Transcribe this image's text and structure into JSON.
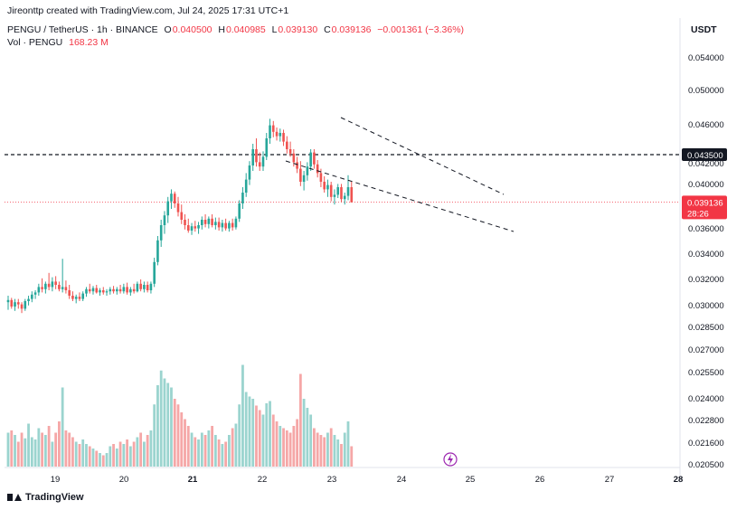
{
  "header": {
    "creator_line": "Jireonttp created with TradingView.com, Jul 24, 2025 17:31 UTC+1",
    "symbol": "PENGU / TetherUS · 1h · BINANCE",
    "o_label": "O",
    "o_value": "0.040500",
    "h_label": "H",
    "h_value": "0.040985",
    "l_label": "L",
    "l_value": "0.039130",
    "c_label": "C",
    "c_value": "0.039136",
    "change": "−0.001361 (−3.36%)",
    "vol_label": "Vol · PENGU",
    "vol_value": "168.23 M",
    "currency": "USDT"
  },
  "footer": {
    "brand": "TradingView"
  },
  "colors": {
    "up": "#26a69a",
    "down": "#ef5350",
    "vol_up": "#9bd4cf",
    "vol_down": "#f5a7a7",
    "price_label": "#f23645"
  },
  "chart_data": {
    "type": "candlestick",
    "x_tick_labels": [
      "19",
      "20",
      "21",
      "22",
      "23",
      "24",
      "25",
      "26",
      "27",
      "28"
    ],
    "y_tick_labels": [
      "0.054000",
      "0.050000",
      "0.046000",
      "0.042000",
      "0.040000",
      "0.036000",
      "0.034000",
      "0.032000",
      "0.030000",
      "0.028500",
      "0.027000",
      "0.025500",
      "0.024000",
      "0.022800",
      "0.021600",
      "0.020500"
    ],
    "horizontal_level": "0.043500",
    "last_price": "0.039136",
    "countdown": "28:26",
    "candles": [
      {
        "o": 0.0299,
        "h": 0.0305,
        "l": 0.0292,
        "c": 0.0301,
        "v": 0.3
      },
      {
        "o": 0.0301,
        "h": 0.0303,
        "l": 0.0293,
        "c": 0.0295,
        "v": 0.32
      },
      {
        "o": 0.0295,
        "h": 0.0302,
        "l": 0.0291,
        "c": 0.0299,
        "v": 0.28
      },
      {
        "o": 0.0299,
        "h": 0.0302,
        "l": 0.0293,
        "c": 0.0297,
        "v": 0.22
      },
      {
        "o": 0.0297,
        "h": 0.0299,
        "l": 0.0289,
        "c": 0.0293,
        "v": 0.3
      },
      {
        "o": 0.0293,
        "h": 0.0302,
        "l": 0.0291,
        "c": 0.03,
        "v": 0.25
      },
      {
        "o": 0.03,
        "h": 0.0305,
        "l": 0.0296,
        "c": 0.0302,
        "v": 0.38
      },
      {
        "o": 0.0302,
        "h": 0.0309,
        "l": 0.0299,
        "c": 0.0306,
        "v": 0.26
      },
      {
        "o": 0.0306,
        "h": 0.031,
        "l": 0.0302,
        "c": 0.0308,
        "v": 0.24
      },
      {
        "o": 0.0308,
        "h": 0.0316,
        "l": 0.0305,
        "c": 0.0313,
        "v": 0.34
      },
      {
        "o": 0.0313,
        "h": 0.0321,
        "l": 0.0308,
        "c": 0.0311,
        "v": 0.3
      },
      {
        "o": 0.0311,
        "h": 0.0318,
        "l": 0.0307,
        "c": 0.0316,
        "v": 0.28
      },
      {
        "o": 0.0316,
        "h": 0.0326,
        "l": 0.031,
        "c": 0.0313,
        "v": 0.36
      },
      {
        "o": 0.0313,
        "h": 0.0322,
        "l": 0.0309,
        "c": 0.0318,
        "v": 0.22
      },
      {
        "o": 0.0318,
        "h": 0.0323,
        "l": 0.0311,
        "c": 0.0315,
        "v": 0.3
      },
      {
        "o": 0.0315,
        "h": 0.0318,
        "l": 0.0309,
        "c": 0.0311,
        "v": 0.4
      },
      {
        "o": 0.0311,
        "h": 0.0339,
        "l": 0.0308,
        "c": 0.0313,
        "v": 0.7
      },
      {
        "o": 0.0313,
        "h": 0.0319,
        "l": 0.0307,
        "c": 0.031,
        "v": 0.32
      },
      {
        "o": 0.031,
        "h": 0.0315,
        "l": 0.0302,
        "c": 0.0305,
        "v": 0.3
      },
      {
        "o": 0.0305,
        "h": 0.0309,
        "l": 0.03,
        "c": 0.0302,
        "v": 0.26
      },
      {
        "o": 0.0302,
        "h": 0.0306,
        "l": 0.0298,
        "c": 0.0304,
        "v": 0.22
      },
      {
        "o": 0.0304,
        "h": 0.0308,
        "l": 0.03,
        "c": 0.0302,
        "v": 0.2
      },
      {
        "o": 0.0302,
        "h": 0.0309,
        "l": 0.03,
        "c": 0.0307,
        "v": 0.24
      },
      {
        "o": 0.0307,
        "h": 0.0313,
        "l": 0.0304,
        "c": 0.0311,
        "v": 0.2
      },
      {
        "o": 0.0311,
        "h": 0.0316,
        "l": 0.0307,
        "c": 0.0309,
        "v": 0.18
      },
      {
        "o": 0.0309,
        "h": 0.0314,
        "l": 0.0306,
        "c": 0.0312,
        "v": 0.16
      },
      {
        "o": 0.0312,
        "h": 0.0315,
        "l": 0.0307,
        "c": 0.0308,
        "v": 0.14
      },
      {
        "o": 0.0308,
        "h": 0.0312,
        "l": 0.0305,
        "c": 0.031,
        "v": 0.12
      },
      {
        "o": 0.031,
        "h": 0.0313,
        "l": 0.0306,
        "c": 0.0308,
        "v": 0.1
      },
      {
        "o": 0.0308,
        "h": 0.0311,
        "l": 0.0305,
        "c": 0.0309,
        "v": 0.12
      },
      {
        "o": 0.0309,
        "h": 0.0313,
        "l": 0.0306,
        "c": 0.0311,
        "v": 0.18
      },
      {
        "o": 0.0311,
        "h": 0.0314,
        "l": 0.0307,
        "c": 0.0309,
        "v": 0.2
      },
      {
        "o": 0.0309,
        "h": 0.0313,
        "l": 0.0306,
        "c": 0.0311,
        "v": 0.16
      },
      {
        "o": 0.0311,
        "h": 0.0315,
        "l": 0.0307,
        "c": 0.0309,
        "v": 0.22
      },
      {
        "o": 0.0309,
        "h": 0.0316,
        "l": 0.0307,
        "c": 0.0313,
        "v": 0.2
      },
      {
        "o": 0.0313,
        "h": 0.0317,
        "l": 0.0306,
        "c": 0.0308,
        "v": 0.24
      },
      {
        "o": 0.0308,
        "h": 0.0313,
        "l": 0.0305,
        "c": 0.0311,
        "v": 0.18
      },
      {
        "o": 0.0311,
        "h": 0.0316,
        "l": 0.0307,
        "c": 0.0309,
        "v": 0.22
      },
      {
        "o": 0.0309,
        "h": 0.0318,
        "l": 0.0308,
        "c": 0.0316,
        "v": 0.26
      },
      {
        "o": 0.0316,
        "h": 0.032,
        "l": 0.0309,
        "c": 0.0311,
        "v": 0.3
      },
      {
        "o": 0.0311,
        "h": 0.0318,
        "l": 0.0308,
        "c": 0.0315,
        "v": 0.22
      },
      {
        "o": 0.0315,
        "h": 0.0318,
        "l": 0.0308,
        "c": 0.031,
        "v": 0.28
      },
      {
        "o": 0.031,
        "h": 0.0318,
        "l": 0.0307,
        "c": 0.0316,
        "v": 0.32
      },
      {
        "o": 0.0316,
        "h": 0.034,
        "l": 0.0313,
        "c": 0.0336,
        "v": 0.55
      },
      {
        "o": 0.0336,
        "h": 0.036,
        "l": 0.0333,
        "c": 0.0356,
        "v": 0.72
      },
      {
        "o": 0.0356,
        "h": 0.0375,
        "l": 0.035,
        "c": 0.037,
        "v": 0.85
      },
      {
        "o": 0.037,
        "h": 0.0383,
        "l": 0.0362,
        "c": 0.0379,
        "v": 0.78
      },
      {
        "o": 0.0379,
        "h": 0.0396,
        "l": 0.0372,
        "c": 0.0392,
        "v": 0.74
      },
      {
        "o": 0.0392,
        "h": 0.0403,
        "l": 0.0385,
        "c": 0.0399,
        "v": 0.7
      },
      {
        "o": 0.0399,
        "h": 0.0401,
        "l": 0.0386,
        "c": 0.039,
        "v": 0.6
      },
      {
        "o": 0.039,
        "h": 0.0396,
        "l": 0.0378,
        "c": 0.0382,
        "v": 0.55
      },
      {
        "o": 0.0382,
        "h": 0.0389,
        "l": 0.0371,
        "c": 0.0375,
        "v": 0.48
      },
      {
        "o": 0.0375,
        "h": 0.038,
        "l": 0.0366,
        "c": 0.037,
        "v": 0.42
      },
      {
        "o": 0.037,
        "h": 0.0376,
        "l": 0.0363,
        "c": 0.0365,
        "v": 0.36
      },
      {
        "o": 0.0365,
        "h": 0.0372,
        "l": 0.0361,
        "c": 0.0369,
        "v": 0.3
      },
      {
        "o": 0.0369,
        "h": 0.0374,
        "l": 0.0364,
        "c": 0.0367,
        "v": 0.26
      },
      {
        "o": 0.0367,
        "h": 0.0373,
        "l": 0.0362,
        "c": 0.037,
        "v": 0.24
      },
      {
        "o": 0.037,
        "h": 0.0378,
        "l": 0.0366,
        "c": 0.0375,
        "v": 0.3
      },
      {
        "o": 0.0375,
        "h": 0.038,
        "l": 0.0368,
        "c": 0.0371,
        "v": 0.28
      },
      {
        "o": 0.0371,
        "h": 0.0378,
        "l": 0.0367,
        "c": 0.0376,
        "v": 0.32
      },
      {
        "o": 0.0376,
        "h": 0.038,
        "l": 0.0368,
        "c": 0.037,
        "v": 0.36
      },
      {
        "o": 0.037,
        "h": 0.0377,
        "l": 0.0366,
        "c": 0.0373,
        "v": 0.28
      },
      {
        "o": 0.0373,
        "h": 0.0377,
        "l": 0.0365,
        "c": 0.0368,
        "v": 0.24
      },
      {
        "o": 0.0368,
        "h": 0.0375,
        "l": 0.0364,
        "c": 0.0372,
        "v": 0.2
      },
      {
        "o": 0.0372,
        "h": 0.0376,
        "l": 0.0365,
        "c": 0.0367,
        "v": 0.22
      },
      {
        "o": 0.0367,
        "h": 0.0374,
        "l": 0.0364,
        "c": 0.0372,
        "v": 0.28
      },
      {
        "o": 0.0372,
        "h": 0.0376,
        "l": 0.0365,
        "c": 0.0368,
        "v": 0.34
      },
      {
        "o": 0.0368,
        "h": 0.0378,
        "l": 0.0366,
        "c": 0.0376,
        "v": 0.38
      },
      {
        "o": 0.0376,
        "h": 0.0393,
        "l": 0.0373,
        "c": 0.039,
        "v": 0.55
      },
      {
        "o": 0.039,
        "h": 0.0405,
        "l": 0.0385,
        "c": 0.04,
        "v": 0.9
      },
      {
        "o": 0.04,
        "h": 0.0418,
        "l": 0.0396,
        "c": 0.0412,
        "v": 0.66
      },
      {
        "o": 0.0412,
        "h": 0.0429,
        "l": 0.0407,
        "c": 0.0425,
        "v": 0.62
      },
      {
        "o": 0.0425,
        "h": 0.0445,
        "l": 0.042,
        "c": 0.044,
        "v": 0.6
      },
      {
        "o": 0.044,
        "h": 0.045,
        "l": 0.0424,
        "c": 0.0428,
        "v": 0.54
      },
      {
        "o": 0.0428,
        "h": 0.0437,
        "l": 0.042,
        "c": 0.0424,
        "v": 0.5
      },
      {
        "o": 0.0424,
        "h": 0.0438,
        "l": 0.042,
        "c": 0.0433,
        "v": 0.46
      },
      {
        "o": 0.0433,
        "h": 0.0455,
        "l": 0.043,
        "c": 0.045,
        "v": 0.56
      },
      {
        "o": 0.045,
        "h": 0.0468,
        "l": 0.0445,
        "c": 0.0462,
        "v": 0.58
      },
      {
        "o": 0.0462,
        "h": 0.0466,
        "l": 0.0451,
        "c": 0.0456,
        "v": 0.46
      },
      {
        "o": 0.0456,
        "h": 0.046,
        "l": 0.0448,
        "c": 0.0452,
        "v": 0.4
      },
      {
        "o": 0.0452,
        "h": 0.0459,
        "l": 0.0447,
        "c": 0.0455,
        "v": 0.36
      },
      {
        "o": 0.0455,
        "h": 0.0458,
        "l": 0.0443,
        "c": 0.0447,
        "v": 0.34
      },
      {
        "o": 0.0447,
        "h": 0.0452,
        "l": 0.0436,
        "c": 0.044,
        "v": 0.32
      },
      {
        "o": 0.044,
        "h": 0.0447,
        "l": 0.0433,
        "c": 0.0436,
        "v": 0.3
      },
      {
        "o": 0.0436,
        "h": 0.044,
        "l": 0.0424,
        "c": 0.0428,
        "v": 0.36
      },
      {
        "o": 0.0428,
        "h": 0.0433,
        "l": 0.0418,
        "c": 0.0422,
        "v": 0.42
      },
      {
        "o": 0.0422,
        "h": 0.0429,
        "l": 0.0406,
        "c": 0.041,
        "v": 0.82
      },
      {
        "o": 0.041,
        "h": 0.042,
        "l": 0.0402,
        "c": 0.0416,
        "v": 0.6
      },
      {
        "o": 0.0416,
        "h": 0.0428,
        "l": 0.0411,
        "c": 0.0424,
        "v": 0.52
      },
      {
        "o": 0.0424,
        "h": 0.044,
        "l": 0.042,
        "c": 0.0437,
        "v": 0.46
      },
      {
        "o": 0.0437,
        "h": 0.044,
        "l": 0.0422,
        "c": 0.0426,
        "v": 0.34
      },
      {
        "o": 0.0426,
        "h": 0.043,
        "l": 0.0414,
        "c": 0.0418,
        "v": 0.3
      },
      {
        "o": 0.0418,
        "h": 0.0422,
        "l": 0.0405,
        "c": 0.041,
        "v": 0.28
      },
      {
        "o": 0.041,
        "h": 0.0415,
        "l": 0.04,
        "c": 0.0403,
        "v": 0.26
      },
      {
        "o": 0.0403,
        "h": 0.0412,
        "l": 0.0396,
        "c": 0.0407,
        "v": 0.3
      },
      {
        "o": 0.0407,
        "h": 0.041,
        "l": 0.0392,
        "c": 0.0396,
        "v": 0.34
      },
      {
        "o": 0.0396,
        "h": 0.0403,
        "l": 0.0389,
        "c": 0.0398,
        "v": 0.28
      },
      {
        "o": 0.0398,
        "h": 0.0408,
        "l": 0.0395,
        "c": 0.0405,
        "v": 0.24
      },
      {
        "o": 0.0405,
        "h": 0.0408,
        "l": 0.0391,
        "c": 0.0394,
        "v": 0.2
      },
      {
        "o": 0.0394,
        "h": 0.04,
        "l": 0.0389,
        "c": 0.0397,
        "v": 0.3
      },
      {
        "o": 0.0397,
        "h": 0.0416,
        "l": 0.0393,
        "c": 0.0405,
        "v": 0.4
      },
      {
        "o": 0.0405,
        "h": 0.041,
        "l": 0.0391,
        "c": 0.0391,
        "v": 0.18
      }
    ],
    "trendlines": [
      {
        "from": {
          "i": 90,
          "p": 0.047
        },
        "to": {
          "i": 135,
          "p": 0.0394
        }
      },
      {
        "from": {
          "i": 78,
          "p": 0.0424
        },
        "to": {
          "i": 139,
          "p": 0.0364
        }
      }
    ]
  }
}
